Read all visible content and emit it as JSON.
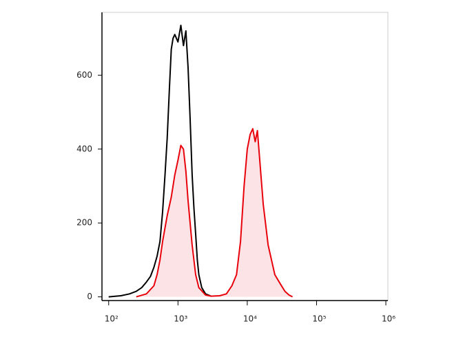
{
  "chart_data": {
    "type": "histogram-overlay",
    "xscale": "log",
    "xlim": [
      80,
      1070000
    ],
    "ylim": [
      -10,
      770
    ],
    "xticks": [
      {
        "value": 100,
        "label": "10²"
      },
      {
        "value": 1000,
        "label": "10³"
      },
      {
        "value": 10000,
        "label": "10⁴"
      },
      {
        "value": 100000,
        "label": "10⁵"
      },
      {
        "value": 1000000,
        "label": "10⁶"
      }
    ],
    "yticks": [
      0,
      200,
      400,
      600
    ],
    "series": [
      {
        "color": "#000000",
        "fill": null,
        "x": [
          100,
          150,
          200,
          250,
          300,
          350,
          400,
          450,
          500,
          550,
          600,
          650,
          700,
          750,
          800,
          850,
          900,
          1000,
          1100,
          1200,
          1300,
          1400,
          1500,
          1600,
          1700,
          1800,
          1900,
          2000,
          2200,
          2500,
          3000
        ],
        "values": [
          0,
          3,
          8,
          15,
          25,
          40,
          55,
          80,
          110,
          150,
          230,
          330,
          430,
          560,
          670,
          700,
          710,
          690,
          735,
          680,
          720,
          620,
          480,
          330,
          240,
          170,
          100,
          60,
          25,
          8,
          2
        ]
      },
      {
        "color": "#e8000b",
        "fill": "#fce4e6",
        "x": [
          250,
          350,
          450,
          500,
          550,
          600,
          700,
          800,
          900,
          1000,
          1100,
          1200,
          1300,
          1400,
          1600,
          1800,
          2000,
          2500,
          3000,
          4000,
          5000,
          6000,
          7000,
          8000,
          9000,
          10000,
          11000,
          12000,
          13000,
          14000,
          15000,
          17000,
          20000,
          25000,
          30000,
          35000,
          40000,
          45000
        ],
        "values": [
          0,
          8,
          30,
          60,
          100,
          150,
          220,
          270,
          330,
          370,
          410,
          400,
          340,
          260,
          140,
          60,
          25,
          5,
          2,
          3,
          8,
          30,
          60,
          150,
          300,
          400,
          440,
          455,
          420,
          450,
          380,
          250,
          140,
          60,
          35,
          15,
          5,
          0
        ]
      }
    ]
  }
}
